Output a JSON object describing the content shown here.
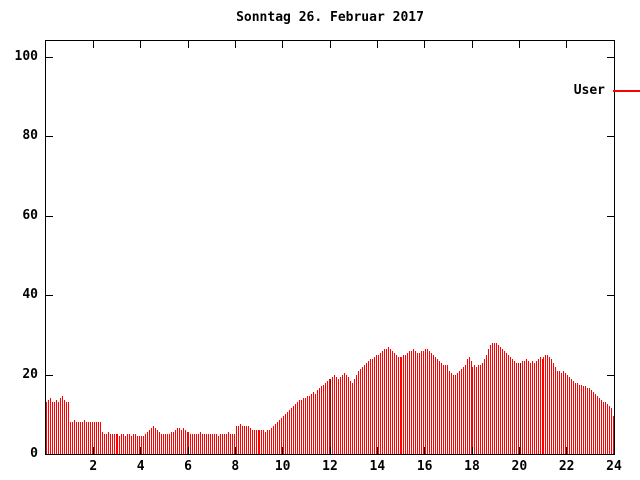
{
  "title": "Sonntag 26. Februar 2017",
  "legend": {
    "label": "User"
  },
  "colors": {
    "bar": "#ff0000",
    "bar_dark": "#990000",
    "axis": "#000000",
    "background": "#ffffff",
    "text": "#000000"
  },
  "chart_data": {
    "type": "bar",
    "title": "Sonntag 26. Februar 2017",
    "xlabel": "",
    "ylabel": "",
    "xlim": [
      0,
      24
    ],
    "ylim": [
      0,
      104
    ],
    "x_ticks": [
      2,
      4,
      6,
      8,
      10,
      12,
      14,
      16,
      18,
      20,
      22,
      24
    ],
    "y_ticks": [
      0,
      20,
      40,
      60,
      80,
      100
    ],
    "grid": false,
    "legend_position": "top-right-inside",
    "sample_interval_minutes": 5,
    "dark_bar_indices": [
      144,
      240
    ],
    "series": [
      {
        "name": "User",
        "values": [
          13,
          13.5,
          14,
          13,
          13,
          13.5,
          13,
          14,
          14.5,
          13.5,
          13,
          13,
          8,
          8,
          8.5,
          8,
          8,
          8,
          8,
          8.5,
          8,
          8,
          8,
          8,
          8,
          8,
          8,
          8,
          5.5,
          5,
          5,
          5.5,
          5,
          5,
          5,
          5,
          5,
          4.5,
          5,
          5,
          4.5,
          5,
          5,
          4.5,
          5,
          5,
          4.5,
          4.5,
          4.5,
          4.5,
          5,
          5.5,
          6,
          6.5,
          7,
          6.5,
          6,
          5.5,
          5,
          5,
          5,
          5,
          5,
          5.5,
          5.5,
          6,
          6.5,
          6.5,
          6,
          6.5,
          6,
          5.5,
          5.5,
          5,
          5,
          5,
          5,
          5,
          5.5,
          5,
          5,
          5,
          5,
          5,
          5,
          5,
          5,
          4.5,
          5,
          5,
          5,
          5,
          5.5,
          5,
          5,
          5,
          7,
          7,
          7.5,
          7,
          7,
          7,
          7,
          6.5,
          6,
          6,
          6,
          6,
          6,
          6,
          6,
          5.5,
          6,
          6,
          6.5,
          7,
          7.5,
          8,
          8.5,
          9,
          9.5,
          10,
          10.5,
          11,
          11.5,
          12,
          12.5,
          13,
          13.5,
          13.5,
          14,
          14,
          14.5,
          14.5,
          15,
          15.5,
          15,
          16,
          16.5,
          17,
          17.5,
          18,
          18.5,
          19,
          19,
          19.5,
          20,
          19.5,
          19,
          19.5,
          20,
          20.5,
          20,
          19.5,
          18.5,
          18,
          19,
          20,
          21,
          21.5,
          22,
          22.5,
          23,
          23.5,
          24,
          24,
          24.5,
          25,
          25,
          25.5,
          26,
          26.5,
          26.5,
          27,
          26.5,
          26,
          25.5,
          25,
          24.5,
          24.5,
          24.5,
          25,
          25,
          25.5,
          26,
          26,
          26.5,
          26,
          25.5,
          25.5,
          26,
          26,
          26.5,
          26.5,
          26,
          25.5,
          25,
          24.5,
          24,
          23.5,
          23,
          22.5,
          22.5,
          22.5,
          21,
          20.5,
          20,
          20,
          20.5,
          21,
          21.5,
          22,
          22.5,
          24,
          24.5,
          23.5,
          22,
          22.5,
          22,
          22.5,
          22.5,
          23,
          24,
          25,
          26.5,
          27.5,
          28,
          28,
          28,
          27.5,
          27,
          26.5,
          26,
          25.5,
          25,
          24.5,
          24,
          23.5,
          23,
          23,
          23,
          23.5,
          23.5,
          24,
          23.5,
          23,
          23.5,
          23,
          23.5,
          24,
          24.5,
          24,
          24.5,
          25,
          25,
          24.5,
          24,
          23,
          22,
          21,
          21,
          20.5,
          21,
          20.5,
          20,
          19.5,
          19,
          18.5,
          18,
          18,
          17.5,
          17.5,
          17,
          17,
          16.5,
          16.5,
          16,
          15.5,
          15,
          14.5,
          14,
          13.5,
          13,
          13,
          12.5,
          12,
          11.5,
          9.5
        ]
      }
    ]
  }
}
